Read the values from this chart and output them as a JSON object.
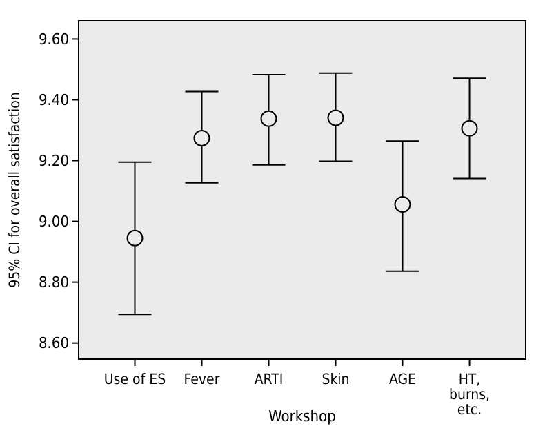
{
  "chart_data": {
    "type": "scatter",
    "xlabel": "Workshop",
    "ylabel": "95% CI for overall satisfaction",
    "categories": [
      "Use of ES",
      "Fever",
      "ARTI",
      "Skin",
      "AGE",
      "HT,\nburns,\netc."
    ],
    "values": [
      8.945,
      9.274,
      9.338,
      9.341,
      9.056,
      9.306
    ],
    "errors": [
      [
        8.694,
        9.195
      ],
      [
        9.127,
        9.427
      ],
      [
        9.186,
        9.483
      ],
      [
        9.198,
        9.488
      ],
      [
        8.836,
        9.264
      ],
      [
        9.141,
        9.471
      ]
    ],
    "color": "#000000",
    "marker": "circle",
    "grid": false,
    "ylim": [
      8.547,
      9.66
    ],
    "yticks": [
      {
        "value": 8.6,
        "label": "8.60"
      },
      {
        "value": 8.8,
        "label": "8.80"
      },
      {
        "value": 9.0,
        "label": "9.00"
      },
      {
        "value": 9.2,
        "label": "9.20"
      },
      {
        "value": 9.4,
        "label": "9.40"
      },
      {
        "value": 9.6,
        "label": "9.60"
      }
    ]
  }
}
